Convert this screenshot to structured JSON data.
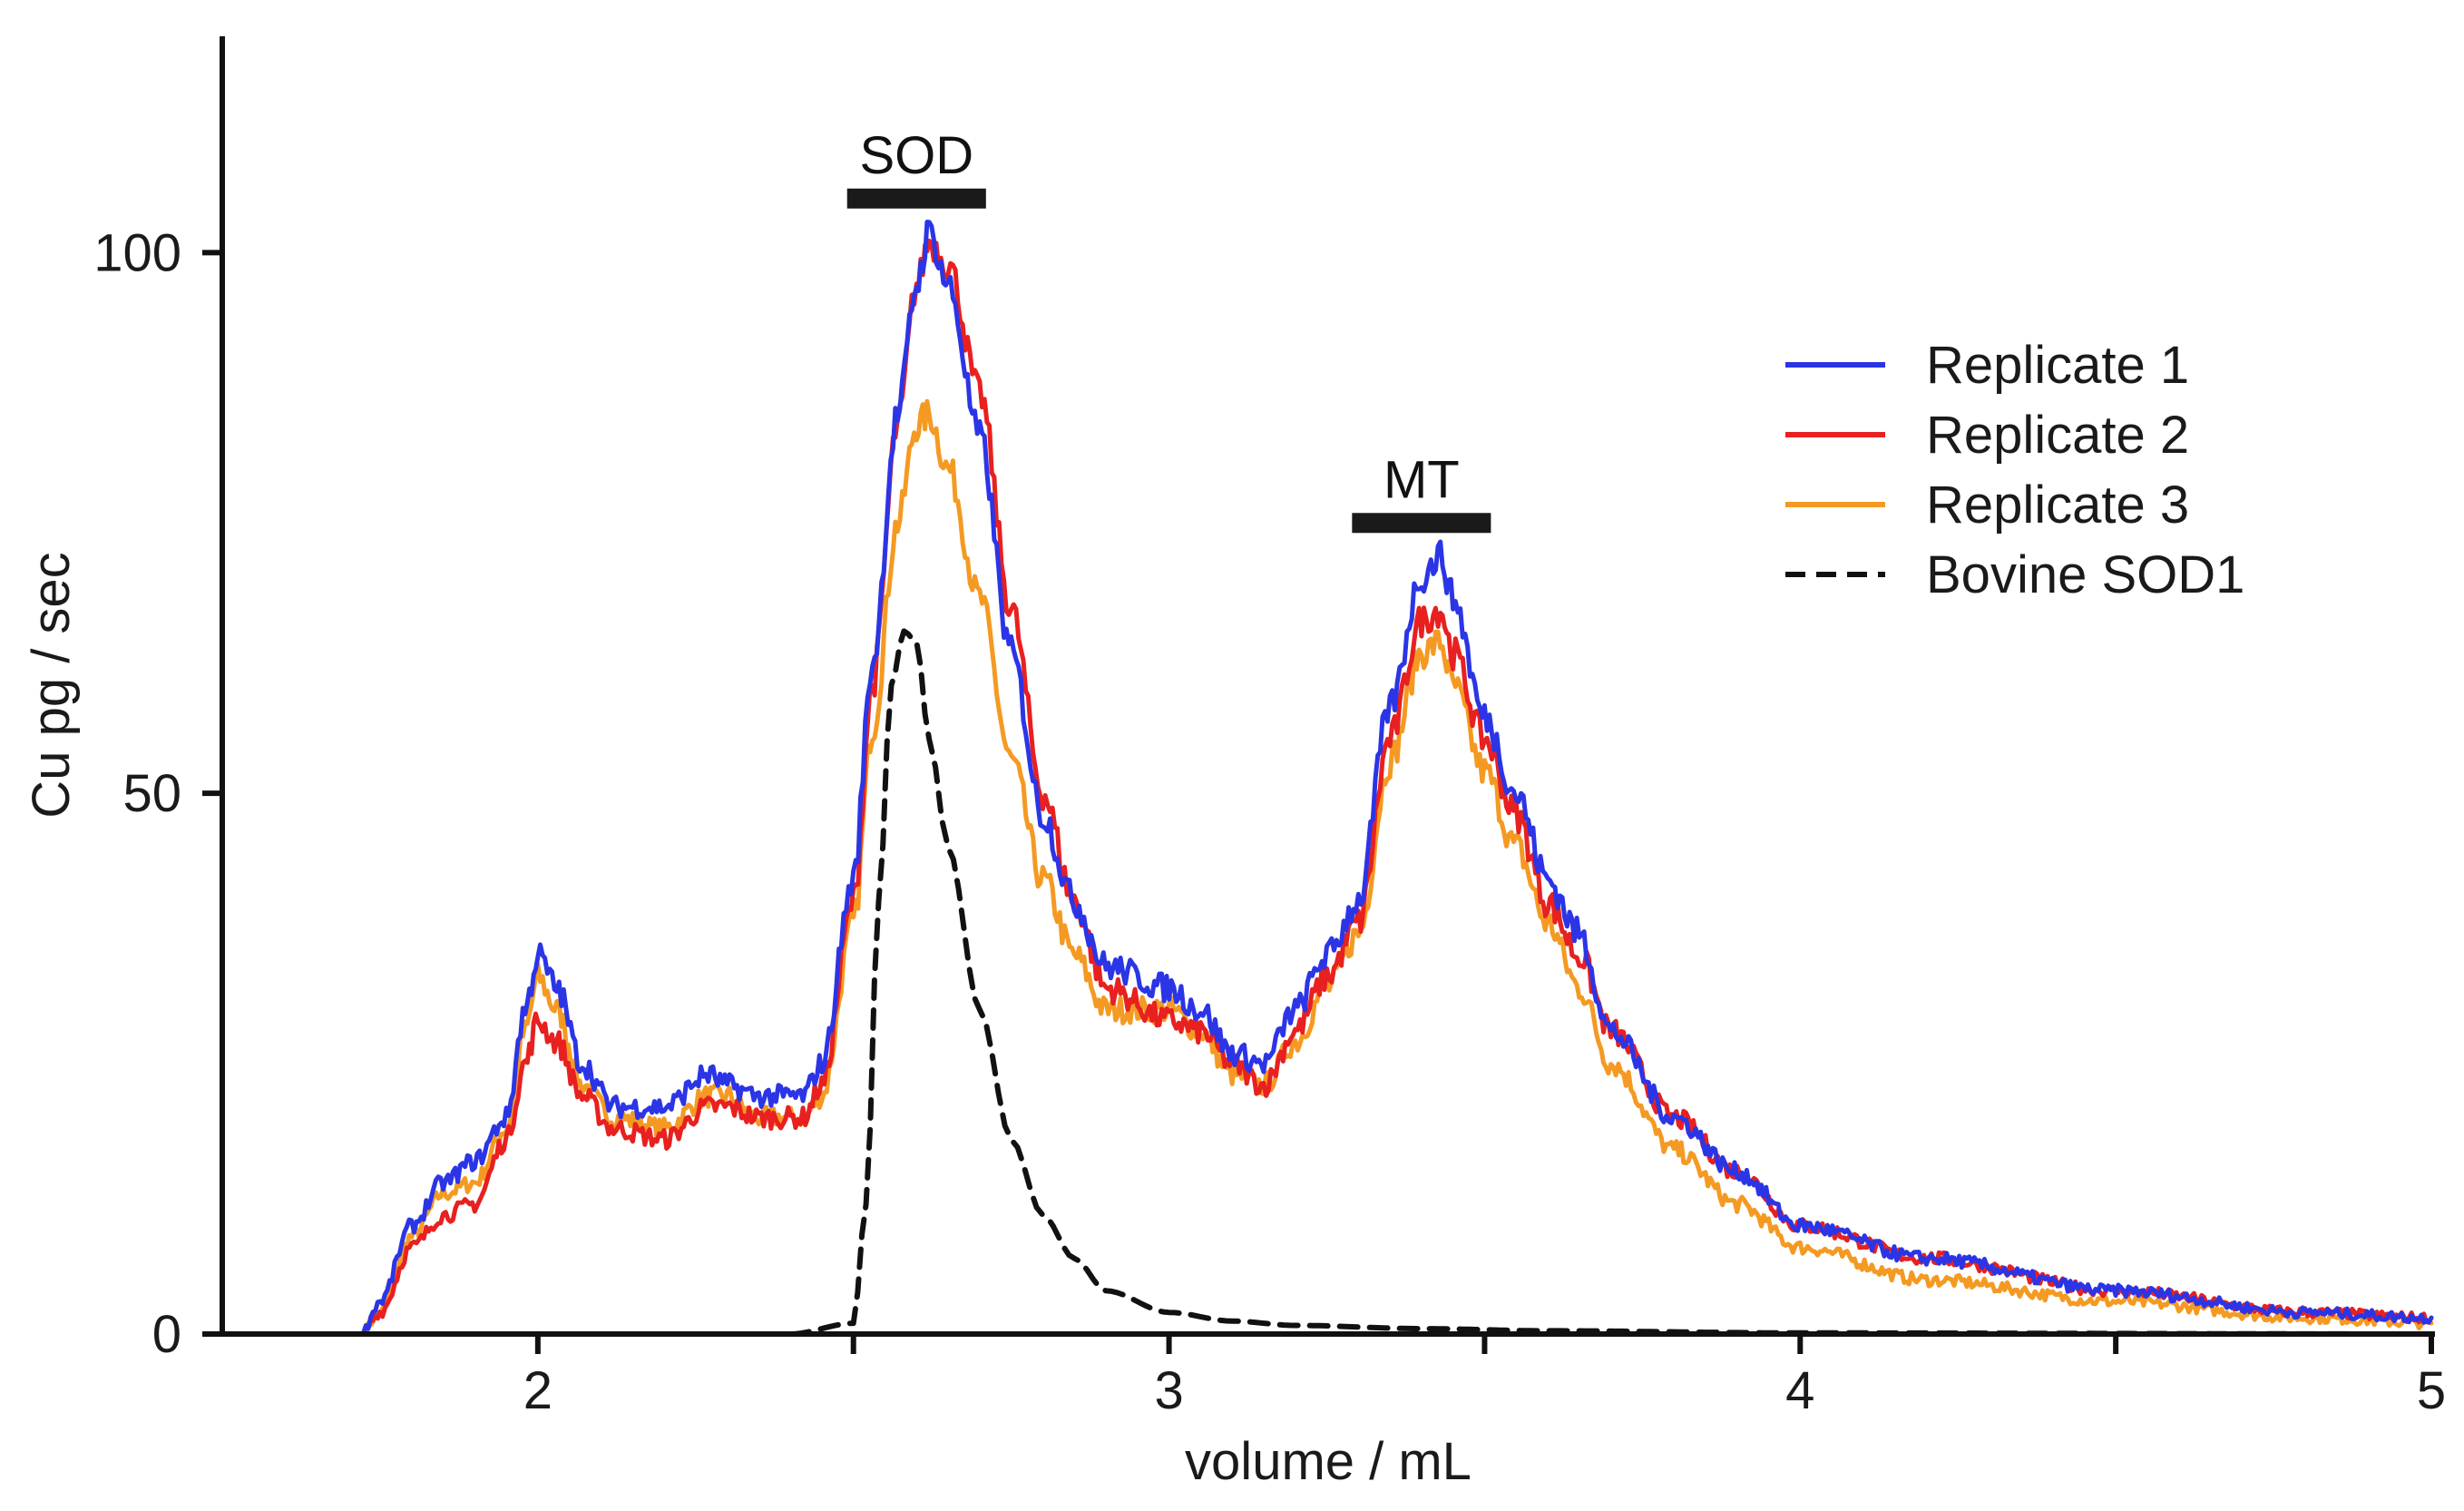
{
  "chart_data": {
    "type": "line",
    "title": "",
    "xlabel": "volume / mL",
    "ylabel": "Cu pg / sec",
    "xlim": [
      1.5,
      5.0
    ],
    "ylim": [
      0,
      120
    ],
    "x_ticks": [
      2,
      3,
      4,
      5
    ],
    "x_minor_ticks": [
      2.5,
      3.5,
      4.5
    ],
    "x_tick_labels": [
      "2",
      "3",
      "4",
      "5"
    ],
    "y_ticks": [
      0,
      50,
      100
    ],
    "y_tick_labels": [
      "0",
      "50",
      "100"
    ],
    "grid": false,
    "legend_position": "top-right",
    "annotations": [
      {
        "label": "SOD",
        "x_start": 2.49,
        "x_end": 2.71,
        "y": 105
      },
      {
        "label": "MT",
        "x_start": 3.29,
        "x_end": 3.51,
        "y": 75
      }
    ],
    "series": [
      {
        "name": "Replicate 1",
        "color": "#2b35e6",
        "dash": "solid",
        "x": [
          1.5,
          1.72,
          1.75,
          1.8,
          1.85,
          1.9,
          1.95,
          1.98,
          2.0,
          2.03,
          2.07,
          2.12,
          2.2,
          2.27,
          2.3,
          2.35,
          2.42,
          2.45,
          2.5,
          2.53,
          2.57,
          2.6,
          2.62,
          2.65,
          2.7,
          2.75,
          2.8,
          2.85,
          2.9,
          3.0,
          3.05,
          3.1,
          3.15,
          3.2,
          3.25,
          3.3,
          3.35,
          3.4,
          3.43,
          3.45,
          3.5,
          3.55,
          3.6,
          3.65,
          3.7,
          3.8,
          3.9,
          4.0,
          4.2,
          4.5,
          4.8,
          5.0
        ],
        "y": [
          0,
          0,
          3,
          10,
          14,
          16,
          20,
          30,
          35,
          32,
          25,
          21,
          21,
          24,
          23,
          22,
          22,
          25,
          42,
          62,
          85,
          97,
          102,
          97,
          83,
          63,
          48,
          40,
          34,
          32,
          30,
          26,
          25,
          30,
          35,
          40,
          58,
          70,
          72,
          68,
          57,
          50,
          42,
          37,
          28,
          20,
          15,
          10,
          7,
          4,
          2,
          1.5
        ]
      },
      {
        "name": "Replicate 2",
        "color": "#e82020",
        "dash": "solid",
        "x": [
          1.5,
          1.72,
          1.75,
          1.8,
          1.85,
          1.9,
          1.95,
          1.98,
          2.0,
          2.03,
          2.07,
          2.12,
          2.2,
          2.27,
          2.3,
          2.35,
          2.42,
          2.45,
          2.5,
          2.53,
          2.57,
          2.6,
          2.62,
          2.65,
          2.7,
          2.75,
          2.8,
          2.85,
          2.9,
          3.0,
          3.05,
          3.1,
          3.15,
          3.2,
          3.25,
          3.3,
          3.35,
          3.4,
          3.43,
          3.45,
          3.5,
          3.55,
          3.6,
          3.65,
          3.7,
          3.8,
          3.9,
          4.0,
          4.2,
          4.5,
          4.8,
          5.0
        ],
        "y": [
          0,
          0,
          2,
          8,
          11,
          12,
          18,
          25,
          29,
          27,
          22,
          19,
          18,
          21,
          21,
          20,
          20,
          23,
          40,
          60,
          84,
          97,
          101,
          99,
          87,
          67,
          50,
          40,
          32,
          29,
          28,
          25,
          23,
          28,
          33,
          38,
          55,
          66,
          67,
          63,
          55,
          48,
          40,
          35,
          28,
          20,
          15,
          10,
          7,
          4,
          2,
          1.5
        ]
      },
      {
        "name": "Replicate 3",
        "color": "#f49a23",
        "dash": "solid",
        "x": [
          1.5,
          1.72,
          1.75,
          1.8,
          1.85,
          1.9,
          1.95,
          1.98,
          2.0,
          2.03,
          2.07,
          2.12,
          2.2,
          2.27,
          2.3,
          2.35,
          2.42,
          2.45,
          2.5,
          2.53,
          2.57,
          2.6,
          2.62,
          2.65,
          2.7,
          2.75,
          2.8,
          2.85,
          2.9,
          3.0,
          3.05,
          3.1,
          3.15,
          3.2,
          3.25,
          3.3,
          3.35,
          3.4,
          3.43,
          3.45,
          3.5,
          3.55,
          3.6,
          3.65,
          3.7,
          3.8,
          3.9,
          4.0,
          4.2,
          4.5,
          4.8,
          5.0
        ],
        "y": [
          0,
          0,
          2,
          9,
          13,
          14,
          19,
          28,
          33,
          30,
          23,
          20,
          19,
          22,
          22,
          20,
          20,
          22,
          38,
          56,
          75,
          84,
          85,
          80,
          68,
          53,
          42,
          35,
          30,
          30,
          28,
          24,
          23,
          27,
          32,
          37,
          53,
          63,
          64,
          60,
          52,
          45,
          38,
          32,
          25,
          17,
          12,
          8,
          5,
          3,
          1.5,
          1
        ]
      },
      {
        "name": "Bovine SOD1",
        "color": "#111111",
        "dash": "dashed",
        "x": [
          1.5,
          2.4,
          2.5,
          2.52,
          2.54,
          2.56,
          2.58,
          2.6,
          2.62,
          2.65,
          2.7,
          2.75,
          2.8,
          2.85,
          2.9,
          3.0,
          3.1,
          3.2,
          3.4,
          3.6,
          4.0,
          5.0
        ],
        "y": [
          0,
          0,
          1,
          12,
          40,
          60,
          65,
          64,
          55,
          45,
          30,
          18,
          11,
          7,
          4,
          2,
          1.2,
          0.8,
          0.5,
          0.3,
          0.1,
          0
        ]
      }
    ]
  }
}
